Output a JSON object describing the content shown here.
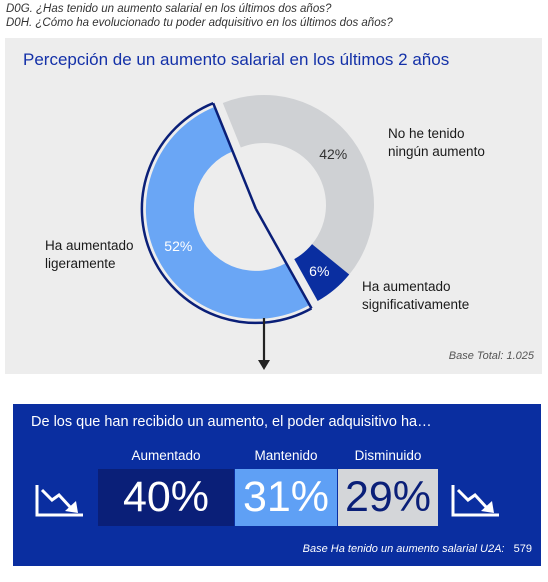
{
  "questions": {
    "q1": "D0G. ¿Has tenido un aumento salarial en los últimos dos años?",
    "q2": "D0H. ¿Cómo ha evolucionado tu poder adquisitivo en los últimos dos años?"
  },
  "chart_data": [
    {
      "type": "pie",
      "style": "donut",
      "title": "Percepción de un aumento salarial en los últimos 2 años",
      "slices": [
        {
          "name": "No he tenido ningún aumento",
          "label_lines": [
            "No he tenido",
            "ningún aumento"
          ],
          "value": 42,
          "value_label": "42%",
          "color": "#cfd1d4"
        },
        {
          "name": "Ha aumentado significativamente",
          "label_lines": [
            "Ha aumentado",
            "significativamente"
          ],
          "value": 6,
          "value_label": "6%",
          "color": "#0a2ea0"
        },
        {
          "name": "Ha aumentado ligeramente",
          "label_lines": [
            "Ha aumentado",
            "ligeramente"
          ],
          "value": 52,
          "value_label": "52%",
          "color": "#6aa6f5"
        }
      ],
      "base": "Base Total: 1.025"
    },
    {
      "type": "table",
      "title": "De los que han recibido un aumento, el poder adquisitivo ha…",
      "categories": [
        "Aumentado",
        "Mantenido",
        "Disminuido"
      ],
      "values": [
        40,
        31,
        29
      ],
      "value_labels": [
        "40%",
        "31%",
        "29%"
      ],
      "colors": [
        "#0a1f78",
        "#5fa0f5",
        "#d4d6d9"
      ],
      "base_label": "Base Ha tenido un aumento salarial U2A:",
      "base_value": "579"
    }
  ],
  "icons": [
    "trend-down-icon",
    "trend-down-icon",
    "arrow-down-icon"
  ]
}
